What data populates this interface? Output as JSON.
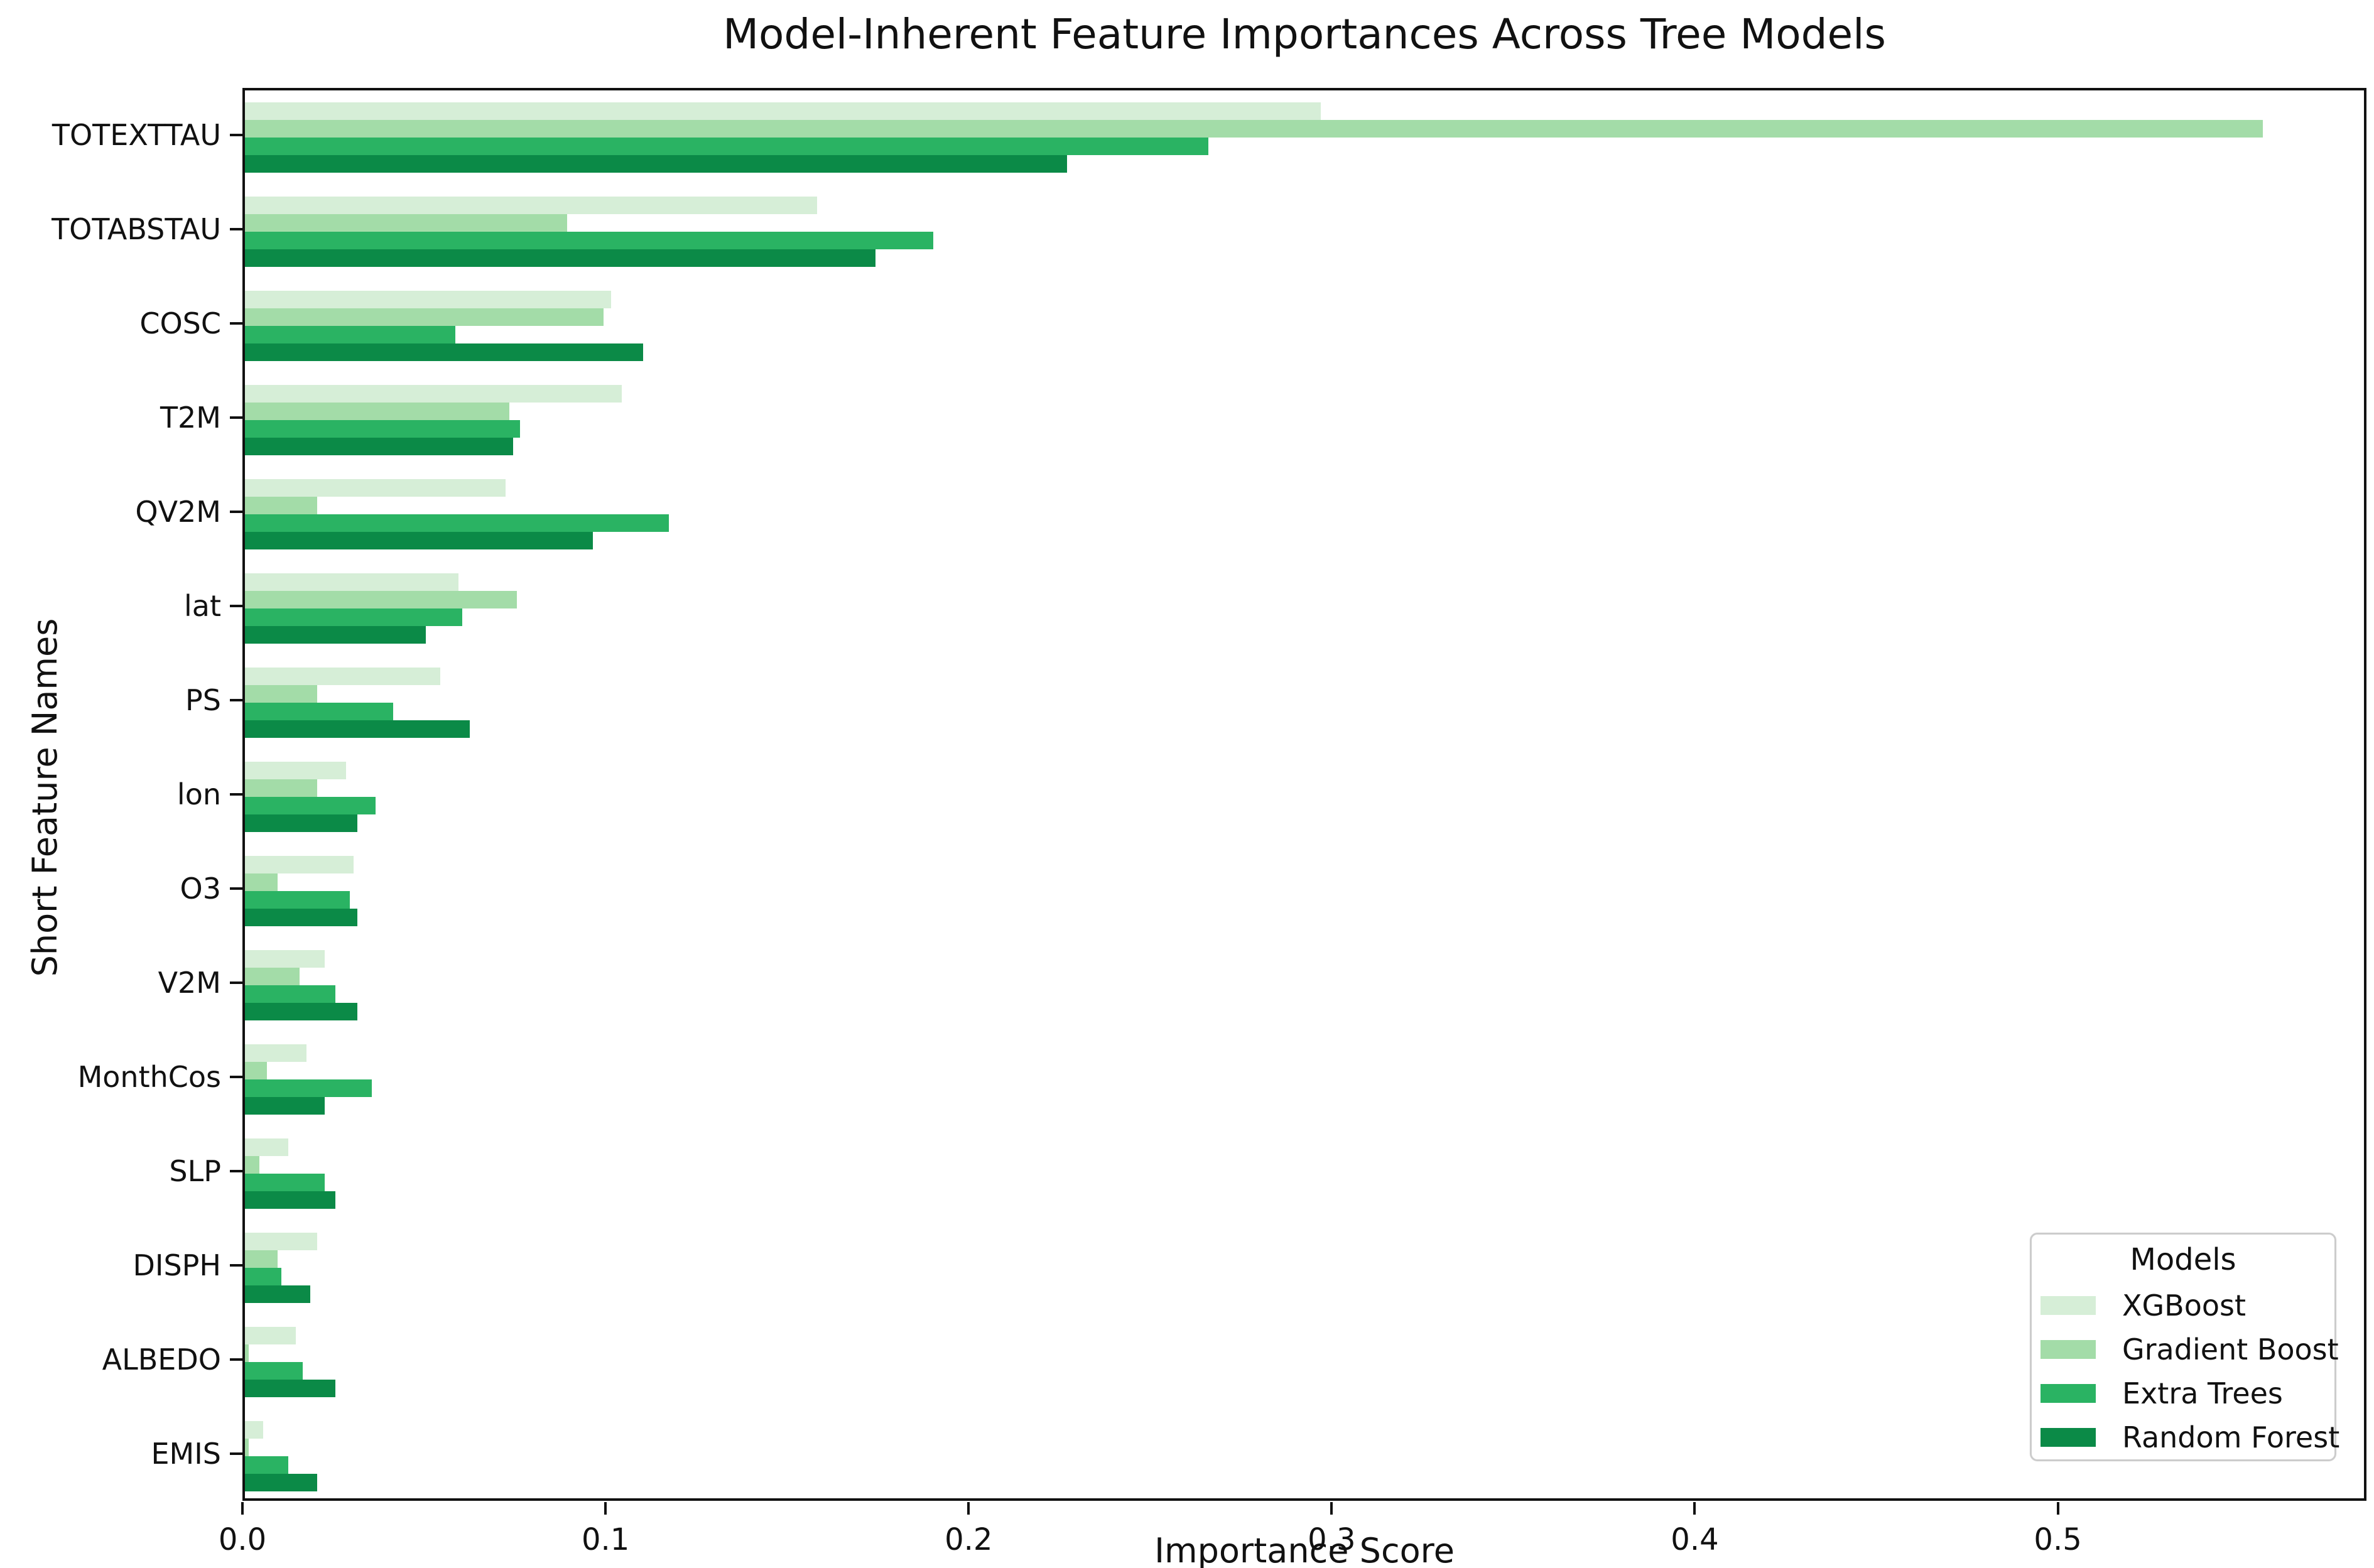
{
  "figure": {
    "title": "Model-Inherent Feature Importances Across Tree Models"
  },
  "chart_data": {
    "type": "bar",
    "orientation": "horizontal",
    "title": "Model-Inherent Feature Importances Across Tree Models",
    "xlabel": "Importance Score",
    "ylabel": "Short Feature Names",
    "grid": false,
    "xlim": [
      0,
      0.585
    ],
    "xticks": [
      {
        "label": "0.0",
        "value": 0.0
      },
      {
        "label": "0.1",
        "value": 0.1
      },
      {
        "label": "0.2",
        "value": 0.2
      },
      {
        "label": "0.3",
        "value": 0.3
      },
      {
        "label": "0.4",
        "value": 0.4
      },
      {
        "label": "0.5",
        "value": 0.5
      }
    ],
    "categories": [
      "TOTEXTTAU",
      "TOTABSTAU",
      "COSC",
      "T2M",
      "QV2M",
      "lat",
      "PS",
      "lon",
      "O3",
      "V2M",
      "MonthCos",
      "SLP",
      "DISPH",
      "ALBEDO",
      "EMIS"
    ],
    "series": [
      {
        "name": "XGBoost",
        "color": "#d6eed7",
        "values": [
          0.297,
          0.158,
          0.101,
          0.104,
          0.072,
          0.059,
          0.054,
          0.028,
          0.03,
          0.022,
          0.017,
          0.012,
          0.02,
          0.014,
          0.005
        ]
      },
      {
        "name": "Gradient Boost",
        "color": "#a3dca8",
        "values": [
          0.557,
          0.089,
          0.099,
          0.073,
          0.02,
          0.075,
          0.02,
          0.02,
          0.009,
          0.015,
          0.006,
          0.004,
          0.009,
          0.001,
          0.001
        ]
      },
      {
        "name": "Extra Trees",
        "color": "#2ab363",
        "values": [
          0.266,
          0.19,
          0.058,
          0.076,
          0.117,
          0.06,
          0.041,
          0.036,
          0.029,
          0.025,
          0.035,
          0.022,
          0.01,
          0.016,
          0.012
        ]
      },
      {
        "name": "Random Forest",
        "color": "#0b8a47",
        "values": [
          0.227,
          0.174,
          0.11,
          0.074,
          0.096,
          0.05,
          0.062,
          0.031,
          0.031,
          0.031,
          0.022,
          0.025,
          0.018,
          0.025,
          0.02
        ]
      }
    ],
    "legend": {
      "title": "Models",
      "position": "lower right"
    }
  }
}
